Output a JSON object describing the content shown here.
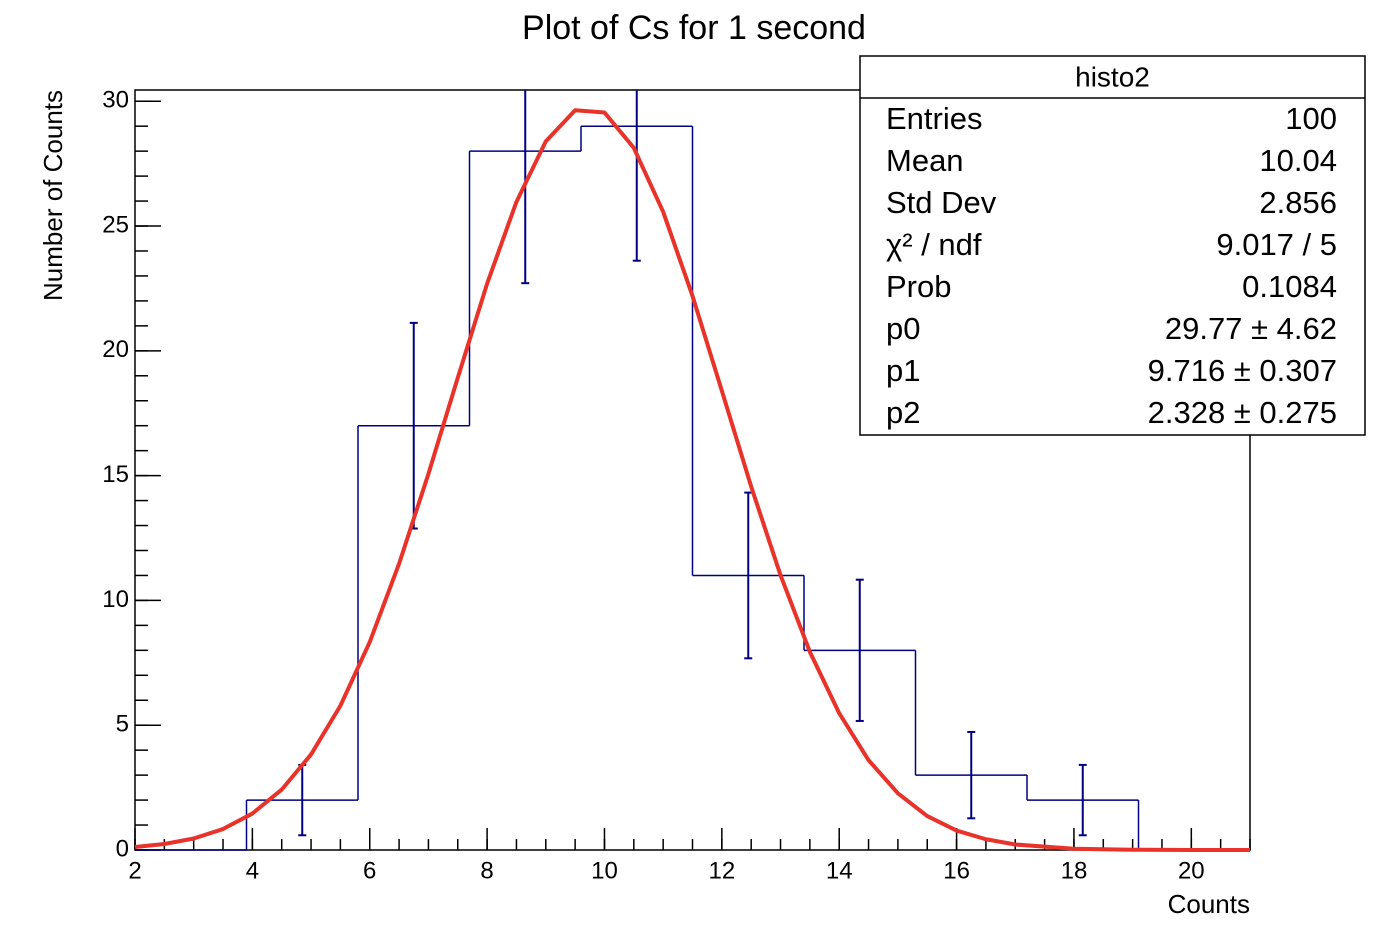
{
  "chart_data": {
    "type": "histogram",
    "title": "Plot of Cs for 1 second",
    "x_label": "Counts",
    "y_label": "Number of Counts",
    "bins": [
      2,
      3.9,
      5.8,
      7.7,
      9.6,
      11.5,
      13.4,
      15.3,
      17.2,
      19.1,
      21
    ],
    "values": [
      0,
      2,
      17,
      28,
      29,
      11,
      8,
      3,
      2,
      0
    ],
    "errors": [
      null,
      1.41,
      4.12,
      5.29,
      5.39,
      3.32,
      2.83,
      1.73,
      1.41,
      null
    ],
    "color": "#000080",
    "fit": {
      "color": "#e8322a",
      "x": [
        2,
        2.5,
        3,
        3.5,
        4,
        4.5,
        5,
        5.5,
        6,
        6.5,
        7,
        7.5,
        8,
        8.5,
        9,
        9.5,
        10,
        10.5,
        11,
        11.5,
        12,
        12.5,
        13,
        13.5,
        14,
        14.5,
        15,
        15.5,
        16,
        16.5,
        17,
        18,
        19,
        20,
        21
      ],
      "values": [
        0.12,
        0.24,
        0.46,
        0.84,
        1.46,
        2.42,
        3.83,
        5.78,
        8.33,
        11.47,
        15.07,
        18.92,
        22.69,
        25.97,
        28.39,
        29.64,
        29.55,
        28.13,
        25.57,
        22.2,
        18.4,
        14.56,
        11.01,
        7.94,
        5.48,
        3.6,
        2.27,
        1.36,
        0.78,
        0.43,
        0.22,
        0.05,
        0.01,
        0,
        0
      ]
    },
    "xlim": [
      2,
      21
    ],
    "ylim": [
      0,
      30.45
    ],
    "xticks": [
      2,
      4,
      6,
      8,
      10,
      12,
      14,
      16,
      18,
      20
    ],
    "yticks": [
      0,
      5,
      10,
      15,
      20,
      25,
      30
    ],
    "stats": {
      "title": "histo2",
      "rows": [
        [
          "Entries",
          "100"
        ],
        [
          "Mean",
          "10.04"
        ],
        [
          "Std Dev",
          "2.856"
        ],
        [
          "χ² / ndf",
          "9.017 / 5"
        ],
        [
          "Prob",
          "0.1084"
        ],
        [
          "p0",
          "29.77 ± 4.62"
        ],
        [
          "p1",
          "9.716 ± 0.307"
        ],
        [
          "p2",
          "2.328 ± 0.275"
        ]
      ]
    }
  }
}
